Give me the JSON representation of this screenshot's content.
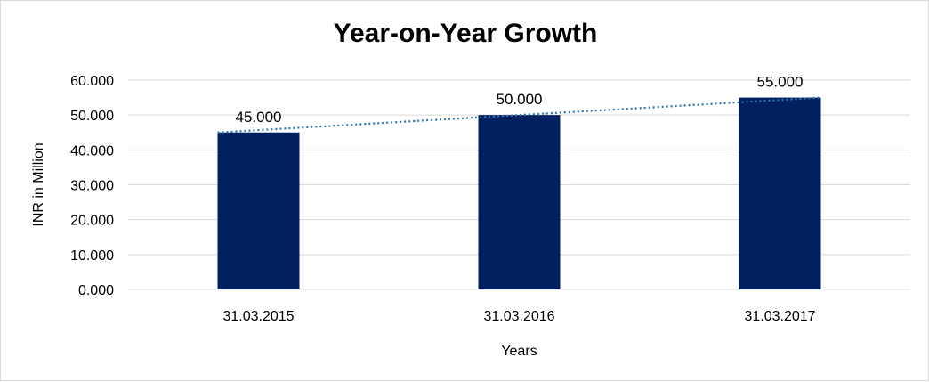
{
  "chart_data": {
    "type": "bar",
    "title": "Year-on-Year Growth",
    "xlabel": "Years",
    "ylabel": "INR in Million",
    "categories": [
      "31.03.2015",
      "31.03.2016",
      "31.03.2017"
    ],
    "values": [
      45,
      50,
      55
    ],
    "data_labels": [
      "45.000",
      "50.000",
      "55.000"
    ],
    "ylim": [
      0,
      60
    ],
    "yticks": [
      0,
      10,
      20,
      30,
      40,
      50,
      60
    ],
    "ytick_labels": [
      "0.000",
      "10.000",
      "20.000",
      "30.000",
      "40.000",
      "50.000",
      "60.000"
    ],
    "trendline": "linear",
    "grid": true,
    "legend": "none",
    "colors": {
      "bar": "#002060",
      "trendline": "#2e75b6",
      "grid": "#d9d9d9"
    }
  }
}
